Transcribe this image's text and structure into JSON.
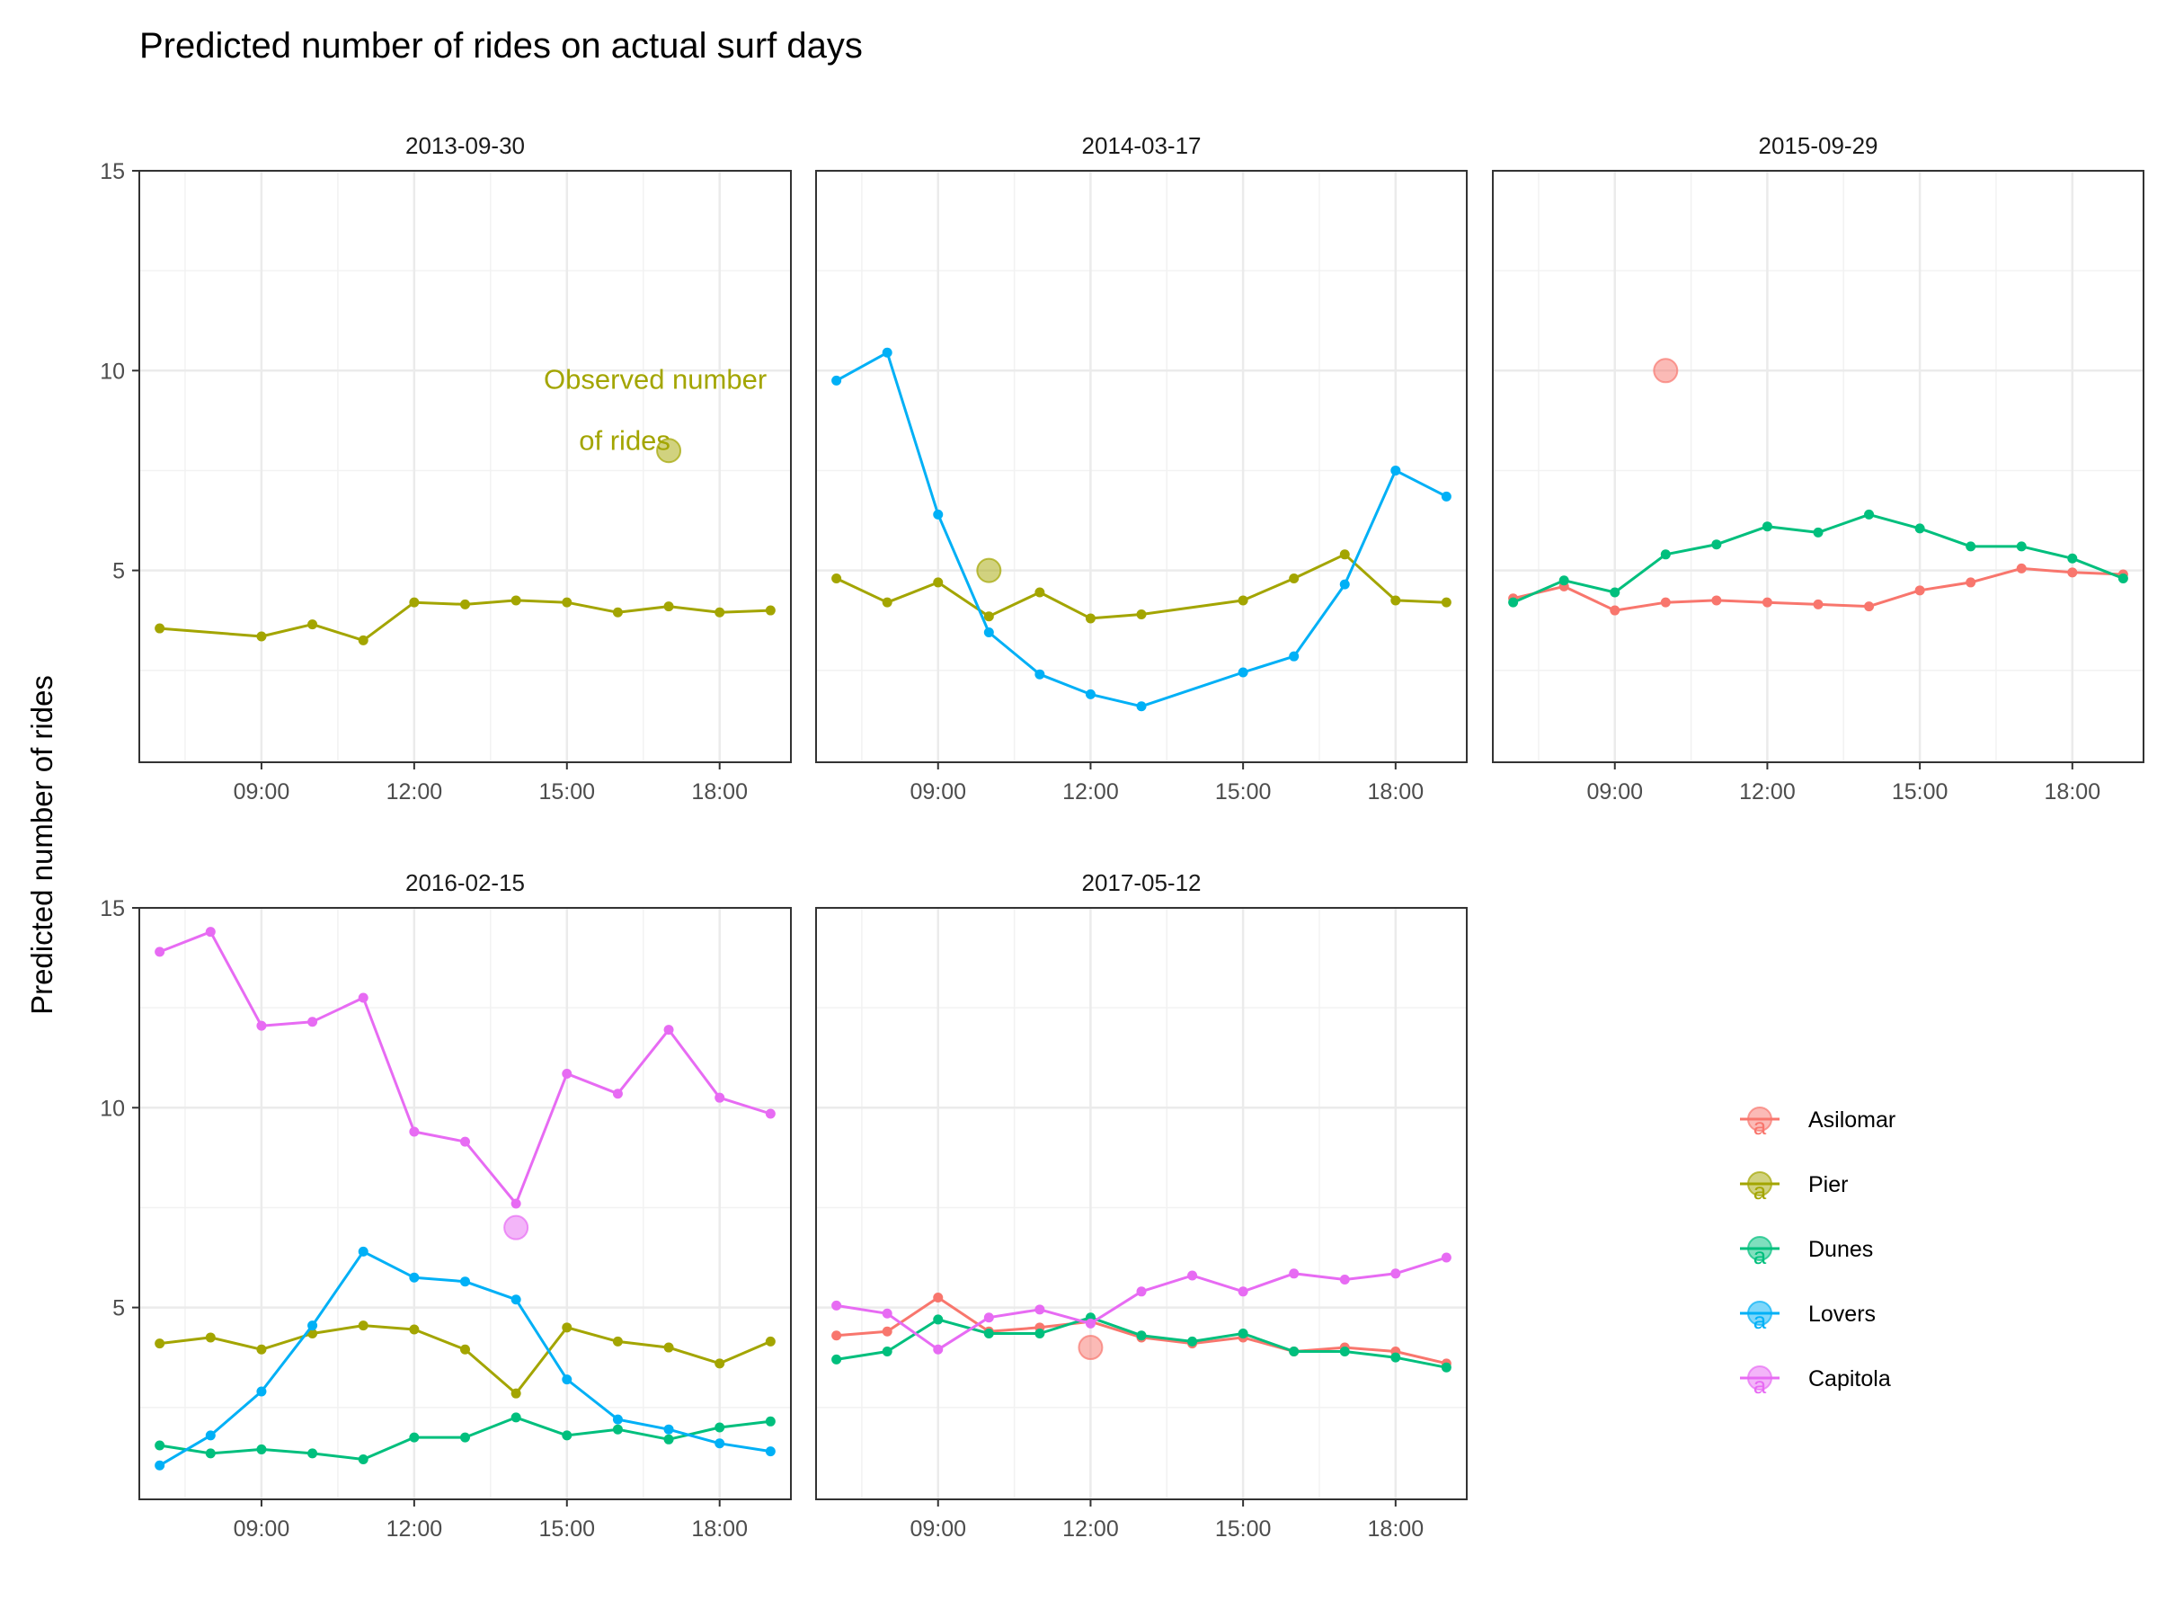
{
  "chart_data": {
    "type": "line",
    "title": "Predicted number of rides on actual surf days",
    "ylabel": "Predicted number of rides",
    "xlabel": "",
    "ylim": [
      0.2,
      15
    ],
    "xlim": [
      "06:36",
      "19:24"
    ],
    "x_ticks": [
      "09:00",
      "12:00",
      "15:00",
      "18:00"
    ],
    "y_ticks": [
      5,
      10,
      15
    ],
    "grid": true,
    "legend_position": "right",
    "colors": {
      "Asilomar": "#f8766d",
      "Pier": "#a3a500",
      "Dunes": "#00bf7d",
      "Lovers": "#00b0f6",
      "Capitola": "#e76bf3"
    },
    "legend": {
      "glyph_letter": "a",
      "items": [
        "Asilomar",
        "Pier",
        "Dunes",
        "Lovers",
        "Capitola"
      ]
    },
    "panels": [
      {
        "strip": "2013-09-30",
        "series": [
          {
            "name": "Pier",
            "x": [
              "07:00",
              "09:00",
              "10:00",
              "11:00",
              "12:00",
              "13:00",
              "14:00",
              "15:00",
              "16:00",
              "17:00",
              "18:00",
              "19:00"
            ],
            "y": [
              3.55,
              3.35,
              3.65,
              3.25,
              4.2,
              4.15,
              4.25,
              4.2,
              3.95,
              4.1,
              3.95,
              4.0
            ]
          }
        ],
        "observed": [
          {
            "name": "Pier",
            "x": "17:00",
            "y": 8.0
          }
        ],
        "annotation": {
          "lines": [
            "Observed number",
            "of rides"
          ],
          "color": "#a3a500"
        }
      },
      {
        "strip": "2014-03-17",
        "series": [
          {
            "name": "Pier",
            "x": [
              "07:00",
              "08:00",
              "09:00",
              "10:00",
              "11:00",
              "12:00",
              "13:00",
              "15:00",
              "16:00",
              "17:00",
              "18:00",
              "19:00"
            ],
            "y": [
              4.8,
              4.2,
              4.7,
              3.85,
              4.45,
              3.8,
              3.9,
              4.25,
              4.8,
              5.4,
              4.25,
              4.2
            ]
          },
          {
            "name": "Lovers",
            "x": [
              "07:00",
              "08:00",
              "09:00",
              "10:00",
              "11:00",
              "12:00",
              "13:00",
              "15:00",
              "16:00",
              "17:00",
              "18:00",
              "19:00"
            ],
            "y": [
              9.75,
              10.45,
              6.4,
              3.45,
              2.4,
              1.9,
              1.6,
              2.45,
              2.85,
              4.65,
              7.5,
              6.85
            ]
          }
        ],
        "observed": [
          {
            "name": "Pier",
            "x": "10:00",
            "y": 5.0
          }
        ]
      },
      {
        "strip": "2015-09-29",
        "series": [
          {
            "name": "Asilomar",
            "x": [
              "07:00",
              "08:00",
              "09:00",
              "10:00",
              "11:00",
              "12:00",
              "13:00",
              "14:00",
              "15:00",
              "16:00",
              "17:00",
              "18:00",
              "19:00"
            ],
            "y": [
              4.3,
              4.6,
              4.0,
              4.2,
              4.25,
              4.2,
              4.15,
              4.1,
              4.5,
              4.7,
              5.05,
              4.95,
              4.9
            ]
          },
          {
            "name": "Dunes",
            "x": [
              "07:00",
              "08:00",
              "09:00",
              "10:00",
              "11:00",
              "12:00",
              "13:00",
              "14:00",
              "15:00",
              "16:00",
              "17:00",
              "18:00",
              "19:00"
            ],
            "y": [
              4.2,
              4.75,
              4.45,
              5.4,
              5.65,
              6.1,
              5.95,
              6.4,
              6.05,
              5.6,
              5.6,
              5.3,
              4.8
            ]
          }
        ],
        "observed": [
          {
            "name": "Asilomar",
            "x": "10:00",
            "y": 10.0
          }
        ]
      },
      {
        "strip": "2016-02-15",
        "series": [
          {
            "name": "Pier",
            "x": [
              "07:00",
              "08:00",
              "09:00",
              "10:00",
              "11:00",
              "12:00",
              "13:00",
              "14:00",
              "15:00",
              "16:00",
              "17:00",
              "18:00",
              "19:00"
            ],
            "y": [
              4.1,
              4.25,
              3.95,
              4.35,
              4.55,
              4.45,
              3.95,
              2.85,
              4.5,
              4.15,
              4.0,
              3.6,
              4.15
            ]
          },
          {
            "name": "Dunes",
            "x": [
              "07:00",
              "08:00",
              "09:00",
              "10:00",
              "11:00",
              "12:00",
              "13:00",
              "14:00",
              "15:00",
              "16:00",
              "17:00",
              "18:00",
              "19:00"
            ],
            "y": [
              1.55,
              1.35,
              1.45,
              1.35,
              1.2,
              1.75,
              1.75,
              2.25,
              1.8,
              1.95,
              1.7,
              2.0,
              2.15
            ]
          },
          {
            "name": "Lovers",
            "x": [
              "07:00",
              "08:00",
              "09:00",
              "10:00",
              "11:00",
              "12:00",
              "13:00",
              "14:00",
              "15:00",
              "16:00",
              "17:00",
              "18:00",
              "19:00"
            ],
            "y": [
              1.05,
              1.8,
              2.9,
              4.55,
              6.4,
              5.75,
              5.65,
              5.2,
              3.2,
              2.2,
              1.95,
              1.6,
              1.4
            ]
          },
          {
            "name": "Capitola",
            "x": [
              "07:00",
              "08:00",
              "09:00",
              "10:00",
              "11:00",
              "12:00",
              "13:00",
              "14:00",
              "15:00",
              "16:00",
              "17:00",
              "18:00",
              "19:00"
            ],
            "y": [
              13.9,
              14.4,
              12.05,
              12.15,
              12.75,
              9.4,
              9.15,
              7.6,
              10.85,
              10.35,
              11.95,
              10.25,
              9.85
            ]
          }
        ],
        "observed": [
          {
            "name": "Capitola",
            "x": "14:00",
            "y": 7.0
          }
        ]
      },
      {
        "strip": "2017-05-12",
        "series": [
          {
            "name": "Asilomar",
            "x": [
              "07:00",
              "08:00",
              "09:00",
              "10:00",
              "11:00",
              "12:00",
              "13:00",
              "14:00",
              "15:00",
              "16:00",
              "17:00",
              "18:00",
              "19:00"
            ],
            "y": [
              4.3,
              4.4,
              5.25,
              4.4,
              4.5,
              4.65,
              4.25,
              4.1,
              4.25,
              3.9,
              4.0,
              3.9,
              3.6
            ]
          },
          {
            "name": "Dunes",
            "x": [
              "07:00",
              "08:00",
              "09:00",
              "10:00",
              "11:00",
              "12:00",
              "13:00",
              "14:00",
              "15:00",
              "16:00",
              "17:00",
              "18:00",
              "19:00"
            ],
            "y": [
              3.7,
              3.9,
              4.7,
              4.35,
              4.35,
              4.75,
              4.3,
              4.15,
              4.35,
              3.9,
              3.9,
              3.75,
              3.5
            ]
          },
          {
            "name": "Capitola",
            "x": [
              "07:00",
              "08:00",
              "09:00",
              "10:00",
              "11:00",
              "12:00",
              "13:00",
              "14:00",
              "15:00",
              "16:00",
              "17:00",
              "18:00",
              "19:00"
            ],
            "y": [
              5.05,
              4.85,
              3.95,
              4.75,
              4.95,
              4.6,
              5.4,
              5.8,
              5.4,
              5.85,
              5.7,
              5.85,
              6.25
            ]
          }
        ],
        "observed": [
          {
            "name": "Asilomar",
            "x": "12:00",
            "y": 4.0
          }
        ]
      }
    ]
  }
}
